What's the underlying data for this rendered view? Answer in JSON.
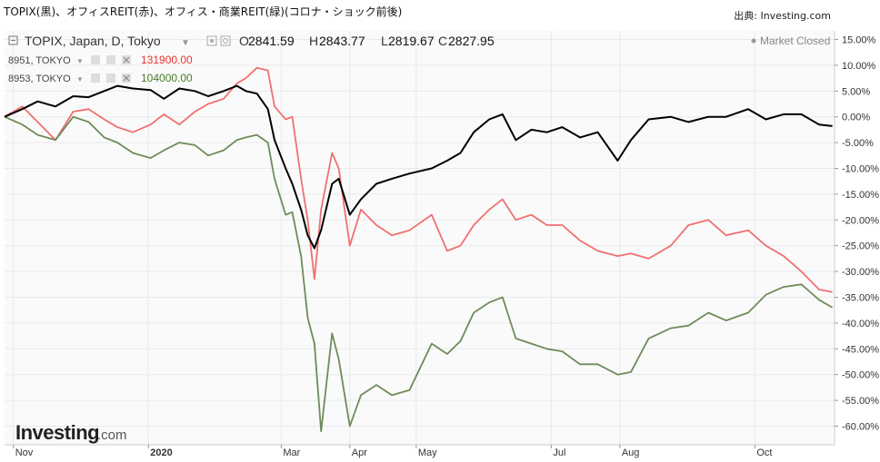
{
  "header": {
    "title": "TOPIX(黒)、オフィスREIT(赤)、オフィス・商業REIT(緑)(コロナ・ショック前後)",
    "source": "出典: Investing.com"
  },
  "legend": {
    "main": {
      "label": "TOPIX, Japan, D, Tokyo",
      "o": "O",
      "o_val": "2841.59",
      "h": "H",
      "h_val": "2843.77",
      "l": "L",
      "l_val": "2819.67",
      "c": "C",
      "c_val": "2827.95"
    },
    "s1": {
      "label": "8951, TOKYO",
      "value": "131900.00"
    },
    "s2": {
      "label": "8953, TOKYO",
      "value": "104000.00"
    },
    "status": "Market Closed"
  },
  "brand": {
    "name": "Investing",
    "suffix": ".com"
  },
  "colors": {
    "topix": "#000000",
    "office": "#f07070",
    "retail": "#6e8c5a",
    "grid": "#e9e9e9",
    "axis": "#bbbbbb",
    "value1": "#e8322e",
    "value2": "#4a7a2a"
  },
  "chart_data": {
    "type": "line",
    "y_unit": "%",
    "ylim": [
      -60,
      15
    ],
    "y_ticks": [
      15,
      10,
      5,
      0,
      -5,
      -10,
      -15,
      -20,
      -25,
      -30,
      -35,
      -40,
      -45,
      -50,
      -55,
      -60
    ],
    "y_tick_labels": [
      "15.00%",
      "10.00%",
      "5.00%",
      "0.00%",
      "-5.00%",
      "-10.00%",
      "-15.00%",
      "-20.00%",
      "-25.00%",
      "-30.00%",
      "-35.00%",
      "-40.00%",
      "-45.00%",
      "-50.00%",
      "-55.00%",
      "-60.00%"
    ],
    "x_ticks": [
      {
        "label": "Nov",
        "t": "2019-11-01"
      },
      {
        "label": "2020",
        "t": "2020-01-01",
        "bold": true
      },
      {
        "label": "Mar",
        "t": "2020-03-01"
      },
      {
        "label": "Apr",
        "t": "2020-04-01"
      },
      {
        "label": "May",
        "t": "2020-05-01"
      },
      {
        "label": "Jul",
        "t": "2020-07-01"
      },
      {
        "label": "Aug",
        "t": "2020-08-01"
      },
      {
        "label": "Oct",
        "t": "2020-10-01"
      }
    ],
    "xlim": [
      "2019-10-28",
      "2020-11-06"
    ],
    "series": [
      {
        "name": "TOPIX, Japan, D, Tokyo",
        "key": "topix",
        "points": [
          [
            "2019-10-28",
            0.0
          ],
          [
            "2019-11-05",
            1.5
          ],
          [
            "2019-11-12",
            3.0
          ],
          [
            "2019-11-20",
            2.0
          ],
          [
            "2019-11-28",
            4.0
          ],
          [
            "2019-12-05",
            3.8
          ],
          [
            "2019-12-12",
            5.0
          ],
          [
            "2019-12-18",
            6.0
          ],
          [
            "2019-12-25",
            5.5
          ],
          [
            "2020-01-02",
            5.2
          ],
          [
            "2020-01-08",
            3.5
          ],
          [
            "2020-01-15",
            5.5
          ],
          [
            "2020-01-22",
            5.0
          ],
          [
            "2020-01-28",
            4.0
          ],
          [
            "2020-02-04",
            5.0
          ],
          [
            "2020-02-10",
            6.0
          ],
          [
            "2020-02-14",
            5.0
          ],
          [
            "2020-02-19",
            4.5
          ],
          [
            "2020-02-24",
            1.5
          ],
          [
            "2020-02-27",
            -4.5
          ],
          [
            "2020-03-03",
            -10.0
          ],
          [
            "2020-03-06",
            -13.0
          ],
          [
            "2020-03-10",
            -18.0
          ],
          [
            "2020-03-13",
            -23.0
          ],
          [
            "2020-03-16",
            -25.5
          ],
          [
            "2020-03-19",
            -22.0
          ],
          [
            "2020-03-24",
            -13.0
          ],
          [
            "2020-03-27",
            -12.0
          ],
          [
            "2020-04-01",
            -19.0
          ],
          [
            "2020-04-06",
            -16.0
          ],
          [
            "2020-04-13",
            -13.0
          ],
          [
            "2020-04-20",
            -12.0
          ],
          [
            "2020-04-28",
            -11.0
          ],
          [
            "2020-05-08",
            -10.0
          ],
          [
            "2020-05-15",
            -8.5
          ],
          [
            "2020-05-21",
            -7.0
          ],
          [
            "2020-05-27",
            -3.0
          ],
          [
            "2020-06-03",
            -0.5
          ],
          [
            "2020-06-09",
            0.5
          ],
          [
            "2020-06-15",
            -4.5
          ],
          [
            "2020-06-22",
            -2.5
          ],
          [
            "2020-06-29",
            -3.0
          ],
          [
            "2020-07-06",
            -2.0
          ],
          [
            "2020-07-14",
            -4.0
          ],
          [
            "2020-07-22",
            -3.0
          ],
          [
            "2020-07-31",
            -8.5
          ],
          [
            "2020-08-06",
            -4.5
          ],
          [
            "2020-08-14",
            -0.5
          ],
          [
            "2020-08-24",
            0.0
          ],
          [
            "2020-09-01",
            -1.0
          ],
          [
            "2020-09-10",
            0.0
          ],
          [
            "2020-09-18",
            0.0
          ],
          [
            "2020-09-28",
            1.5
          ],
          [
            "2020-10-06",
            -0.5
          ],
          [
            "2020-10-14",
            0.5
          ],
          [
            "2020-10-22",
            0.5
          ],
          [
            "2020-10-30",
            -1.5
          ],
          [
            "2020-11-05",
            -1.8
          ]
        ]
      },
      {
        "name": "8951, TOKYO",
        "key": "office",
        "points": [
          [
            "2019-10-28",
            0.0
          ],
          [
            "2019-11-05",
            2.0
          ],
          [
            "2019-11-12",
            -1.0
          ],
          [
            "2019-11-20",
            -4.5
          ],
          [
            "2019-11-28",
            1.0
          ],
          [
            "2019-12-05",
            1.5
          ],
          [
            "2019-12-12",
            -0.5
          ],
          [
            "2019-12-18",
            -2.0
          ],
          [
            "2019-12-25",
            -3.0
          ],
          [
            "2020-01-02",
            -1.5
          ],
          [
            "2020-01-08",
            0.5
          ],
          [
            "2020-01-15",
            -1.5
          ],
          [
            "2020-01-22",
            1.0
          ],
          [
            "2020-01-28",
            2.5
          ],
          [
            "2020-02-04",
            3.5
          ],
          [
            "2020-02-10",
            6.5
          ],
          [
            "2020-02-14",
            7.5
          ],
          [
            "2020-02-19",
            9.5
          ],
          [
            "2020-02-24",
            9.0
          ],
          [
            "2020-02-27",
            2.0
          ],
          [
            "2020-03-03",
            -0.5
          ],
          [
            "2020-03-06",
            0.0
          ],
          [
            "2020-03-10",
            -12.0
          ],
          [
            "2020-03-13",
            -20.0
          ],
          [
            "2020-03-16",
            -31.5
          ],
          [
            "2020-03-19",
            -18.0
          ],
          [
            "2020-03-24",
            -7.0
          ],
          [
            "2020-03-27",
            -10.0
          ],
          [
            "2020-04-01",
            -25.0
          ],
          [
            "2020-04-06",
            -18.0
          ],
          [
            "2020-04-13",
            -21.0
          ],
          [
            "2020-04-20",
            -23.0
          ],
          [
            "2020-04-28",
            -22.0
          ],
          [
            "2020-05-08",
            -19.0
          ],
          [
            "2020-05-15",
            -26.0
          ],
          [
            "2020-05-21",
            -25.0
          ],
          [
            "2020-05-27",
            -21.0
          ],
          [
            "2020-06-03",
            -18.0
          ],
          [
            "2020-06-09",
            -16.0
          ],
          [
            "2020-06-15",
            -20.0
          ],
          [
            "2020-06-22",
            -19.0
          ],
          [
            "2020-06-29",
            -21.0
          ],
          [
            "2020-07-06",
            -21.0
          ],
          [
            "2020-07-14",
            -24.0
          ],
          [
            "2020-07-22",
            -26.0
          ],
          [
            "2020-07-31",
            -27.0
          ],
          [
            "2020-08-06",
            -26.5
          ],
          [
            "2020-08-14",
            -27.5
          ],
          [
            "2020-08-24",
            -25.0
          ],
          [
            "2020-09-01",
            -21.0
          ],
          [
            "2020-09-10",
            -20.0
          ],
          [
            "2020-09-18",
            -23.0
          ],
          [
            "2020-09-28",
            -22.0
          ],
          [
            "2020-10-06",
            -25.0
          ],
          [
            "2020-10-14",
            -27.0
          ],
          [
            "2020-10-22",
            -30.0
          ],
          [
            "2020-10-30",
            -33.5
          ],
          [
            "2020-11-05",
            -34.0
          ]
        ]
      },
      {
        "name": "8953, TOKYO",
        "key": "retail",
        "points": [
          [
            "2019-10-28",
            0.0
          ],
          [
            "2019-11-05",
            -1.5
          ],
          [
            "2019-11-12",
            -3.5
          ],
          [
            "2019-11-20",
            -4.5
          ],
          [
            "2019-11-28",
            0.0
          ],
          [
            "2019-12-05",
            -1.0
          ],
          [
            "2019-12-12",
            -4.0
          ],
          [
            "2019-12-18",
            -5.0
          ],
          [
            "2019-12-25",
            -7.0
          ],
          [
            "2020-01-02",
            -8.0
          ],
          [
            "2020-01-08",
            -6.5
          ],
          [
            "2020-01-15",
            -5.0
          ],
          [
            "2020-01-22",
            -5.5
          ],
          [
            "2020-01-28",
            -7.5
          ],
          [
            "2020-02-04",
            -6.5
          ],
          [
            "2020-02-10",
            -4.5
          ],
          [
            "2020-02-14",
            -4.0
          ],
          [
            "2020-02-19",
            -3.5
          ],
          [
            "2020-02-24",
            -5.0
          ],
          [
            "2020-02-27",
            -12.0
          ],
          [
            "2020-03-03",
            -19.0
          ],
          [
            "2020-03-06",
            -18.5
          ],
          [
            "2020-03-10",
            -27.0
          ],
          [
            "2020-03-13",
            -39.0
          ],
          [
            "2020-03-16",
            -44.0
          ],
          [
            "2020-03-19",
            -61.0
          ],
          [
            "2020-03-24",
            -42.0
          ],
          [
            "2020-03-27",
            -47.0
          ],
          [
            "2020-04-01",
            -60.0
          ],
          [
            "2020-04-06",
            -54.0
          ],
          [
            "2020-04-13",
            -52.0
          ],
          [
            "2020-04-20",
            -54.0
          ],
          [
            "2020-04-28",
            -53.0
          ],
          [
            "2020-05-08",
            -44.0
          ],
          [
            "2020-05-15",
            -46.0
          ],
          [
            "2020-05-21",
            -43.5
          ],
          [
            "2020-05-27",
            -38.0
          ],
          [
            "2020-06-03",
            -36.0
          ],
          [
            "2020-06-09",
            -35.0
          ],
          [
            "2020-06-15",
            -43.0
          ],
          [
            "2020-06-22",
            -44.0
          ],
          [
            "2020-06-29",
            -45.0
          ],
          [
            "2020-07-06",
            -45.5
          ],
          [
            "2020-07-14",
            -48.0
          ],
          [
            "2020-07-22",
            -48.0
          ],
          [
            "2020-07-31",
            -50.0
          ],
          [
            "2020-08-06",
            -49.5
          ],
          [
            "2020-08-14",
            -43.0
          ],
          [
            "2020-08-24",
            -41.0
          ],
          [
            "2020-09-01",
            -40.5
          ],
          [
            "2020-09-10",
            -38.0
          ],
          [
            "2020-09-18",
            -39.5
          ],
          [
            "2020-09-28",
            -38.0
          ],
          [
            "2020-10-06",
            -34.5
          ],
          [
            "2020-10-14",
            -33.0
          ],
          [
            "2020-10-22",
            -32.5
          ],
          [
            "2020-10-30",
            -35.5
          ],
          [
            "2020-11-05",
            -37.0
          ]
        ]
      }
    ]
  }
}
